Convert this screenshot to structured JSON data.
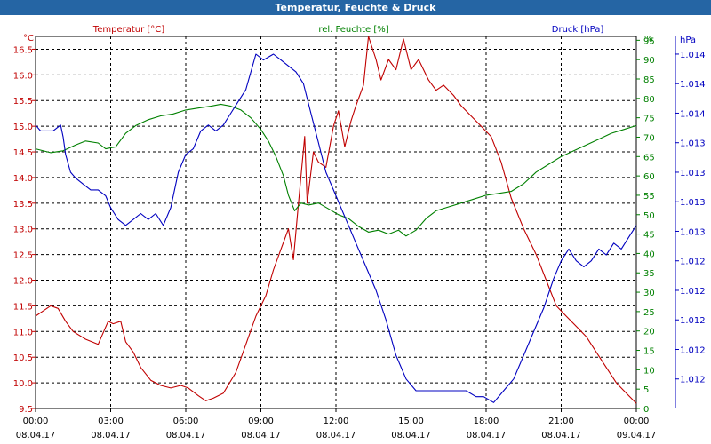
{
  "window": {
    "title": "Temperatur, Feuchte & Druck"
  },
  "colors": {
    "temperature": "#c00000",
    "humidity": "#008000",
    "pressure": "#0000c0",
    "title_bar": "#2565a4",
    "grid": "#000000"
  },
  "chart_data": {
    "type": "line",
    "title": "Temperatur, Feuchte & Druck",
    "grid": true,
    "x": {
      "unit_hours": true,
      "range": [
        0,
        24
      ],
      "ticks": [
        0,
        3,
        6,
        9,
        12,
        15,
        18,
        21,
        24
      ],
      "tick_labels": [
        "00:00",
        "03:00",
        "06:00",
        "09:00",
        "12:00",
        "15:00",
        "18:00",
        "21:00",
        "00:00"
      ],
      "date_labels": [
        "08.04.17",
        "08.04.17",
        "08.04.17",
        "08.04.17",
        "08.04.17",
        "08.04.17",
        "08.04.17",
        "08.04.17",
        "09.04.17"
      ]
    },
    "axes": {
      "temperature": {
        "label": "Temperatur [°C]",
        "unit": "°C",
        "range": [
          9.5,
          16.75
        ],
        "ticks": [
          9.5,
          10.0,
          10.5,
          11.0,
          11.5,
          12.0,
          12.5,
          13.0,
          13.5,
          14.0,
          14.5,
          15.0,
          15.5,
          16.0,
          16.5
        ],
        "tick_labels": [
          "9.5",
          "10.0",
          "10.5",
          "11.0",
          "11.5",
          "12.0",
          "12.5",
          "13.0",
          "13.5",
          "14.0",
          "14.5",
          "15.0",
          "15.5",
          "16.0",
          "16.5"
        ]
      },
      "humidity": {
        "label": "rel. Feuchte [%]",
        "unit": "%",
        "range": [
          0,
          96
        ],
        "ticks": [
          0,
          5,
          10,
          15,
          20,
          25,
          30,
          35,
          40,
          45,
          50,
          55,
          60,
          65,
          70,
          75,
          80,
          85,
          90,
          95
        ],
        "tick_labels": [
          "0",
          "5",
          "10",
          "15",
          "20",
          "25",
          "30",
          "35",
          "40",
          "45",
          "50",
          "55",
          "60",
          "65",
          "70",
          "75",
          "80",
          "85",
          "90",
          "95"
        ]
      },
      "pressure": {
        "label": "Druck [hPa]",
        "unit": "hPa",
        "range": [
          1011.6,
          1014.75
        ],
        "ticks": [
          1011.85,
          1012.1,
          1012.35,
          1012.6,
          1012.85,
          1013.1,
          1013.35,
          1013.6,
          1013.85,
          1014.1,
          1014.35,
          1014.6
        ],
        "tick_labels": [
          "1.012",
          "1.012",
          "1.012",
          "1.012",
          "1.012",
          "1.013",
          "1.013",
          "1.013",
          "1.013",
          "1.014",
          "1.014",
          "1.014"
        ]
      }
    },
    "series": [
      {
        "name": "Temperatur [°C]",
        "axis": "temperature",
        "color": "#c00000",
        "x": [
          0,
          0.3,
          0.6,
          0.9,
          1.2,
          1.5,
          2,
          2.5,
          2.9,
          3.1,
          3.4,
          3.6,
          3.9,
          4.2,
          4.6,
          5,
          5.4,
          5.8,
          6.1,
          6.5,
          6.8,
          7.1,
          7.5,
          8,
          8.4,
          8.8,
          9.2,
          9.5,
          9.8,
          10.1,
          10.3,
          10.5,
          10.75,
          10.85,
          11.1,
          11.3,
          11.6,
          11.9,
          12.1,
          12.35,
          12.6,
          12.8,
          13.1,
          13.3,
          13.6,
          13.8,
          14.1,
          14.4,
          14.7,
          15,
          15.3,
          15.7,
          16,
          16.3,
          16.7,
          17,
          17.4,
          17.8,
          18.2,
          18.6,
          19,
          19.5,
          20,
          20.4,
          20.8,
          21.2,
          21.6,
          22,
          22.4,
          22.8,
          23.2,
          23.6,
          24
        ],
        "values": [
          11.3,
          11.4,
          11.5,
          11.45,
          11.2,
          11.0,
          10.85,
          10.75,
          11.2,
          11.15,
          11.2,
          10.8,
          10.6,
          10.3,
          10.05,
          9.95,
          9.9,
          9.95,
          9.9,
          9.75,
          9.65,
          9.7,
          9.8,
          10.2,
          10.75,
          11.3,
          11.7,
          12.2,
          12.6,
          13.0,
          12.4,
          13.5,
          14.8,
          13.5,
          14.5,
          14.3,
          14.2,
          15.0,
          15.3,
          14.6,
          15.1,
          15.4,
          15.8,
          16.75,
          16.3,
          15.9,
          16.3,
          16.1,
          16.7,
          16.1,
          16.3,
          15.9,
          15.7,
          15.8,
          15.6,
          15.4,
          15.2,
          15.0,
          14.8,
          14.3,
          13.6,
          13.0,
          12.5,
          12.0,
          11.5,
          11.3,
          11.1,
          10.9,
          10.6,
          10.3,
          10.0,
          9.8,
          9.6
        ]
      },
      {
        "name": "rel. Feuchte [%]",
        "axis": "humidity",
        "color": "#008000",
        "x": [
          0,
          0.6,
          1.1,
          1.6,
          2,
          2.5,
          2.8,
          3.2,
          3.6,
          4,
          4.5,
          5,
          5.5,
          6,
          6.5,
          7,
          7.4,
          7.8,
          8.2,
          8.6,
          9,
          9.3,
          9.6,
          9.9,
          10.1,
          10.35,
          10.6,
          10.9,
          11.3,
          11.7,
          12.1,
          12.5,
          12.9,
          13.3,
          13.7,
          14.1,
          14.5,
          14.8,
          15.2,
          15.6,
          16,
          16.5,
          17,
          17.5,
          18,
          18.5,
          19,
          19.5,
          20,
          20.5,
          21,
          21.5,
          22,
          22.5,
          23,
          23.5,
          24
        ],
        "values": [
          67,
          66,
          66.5,
          68,
          69,
          68.5,
          67,
          67.5,
          71,
          73,
          74.5,
          75.5,
          76,
          77,
          77.5,
          78,
          78.5,
          78,
          77,
          75,
          72,
          69,
          65,
          60,
          55,
          51,
          53,
          52.5,
          53,
          51.5,
          50,
          49,
          47,
          45.5,
          46,
          45,
          46,
          44.5,
          46,
          49,
          51,
          52,
          53,
          54,
          55,
          55.5,
          56,
          58,
          61,
          63,
          65,
          66.5,
          68,
          69.5,
          71,
          72,
          73
        ]
      },
      {
        "name": "Druck [hPa]",
        "axis": "pressure",
        "color": "#0000c0",
        "x": [
          0,
          0.2,
          0.4,
          0.7,
          1,
          1.1,
          1.2,
          1.4,
          1.6,
          1.9,
          2.2,
          2.5,
          2.8,
          3,
          3.3,
          3.6,
          3.9,
          4.2,
          4.5,
          4.8,
          5.1,
          5.4,
          5.7,
          6,
          6.3,
          6.6,
          6.9,
          7.2,
          7.5,
          7.8,
          8.1,
          8.4,
          8.8,
          9.1,
          9.5,
          9.8,
          10.1,
          10.4,
          10.7,
          11,
          11.3,
          11.6,
          11.9,
          12.2,
          12.5,
          12.8,
          13.2,
          13.6,
          14,
          14.4,
          14.8,
          15.2,
          15.6,
          16,
          16.4,
          16.8,
          17.2,
          17.6,
          17.9,
          18.3,
          18.7,
          19.1,
          19.5,
          19.9,
          20.3,
          20.7,
          21,
          21.3,
          21.6,
          21.9,
          22.2,
          22.5,
          22.8,
          23.1,
          23.4,
          23.7,
          24
        ],
        "values": [
          1014.0,
          1013.95,
          1013.95,
          1013.95,
          1014.0,
          1013.9,
          1013.75,
          1013.6,
          1013.55,
          1013.5,
          1013.45,
          1013.45,
          1013.4,
          1013.3,
          1013.2,
          1013.15,
          1013.2,
          1013.25,
          1013.2,
          1013.25,
          1013.15,
          1013.3,
          1013.6,
          1013.75,
          1013.8,
          1013.95,
          1014.0,
          1013.95,
          1014.0,
          1014.1,
          1014.2,
          1014.3,
          1014.6,
          1014.55,
          1014.6,
          1014.55,
          1014.5,
          1014.45,
          1014.35,
          1014.1,
          1013.85,
          1013.6,
          1013.45,
          1013.3,
          1013.15,
          1013.0,
          1012.8,
          1012.6,
          1012.35,
          1012.05,
          1011.85,
          1011.75,
          1011.75,
          1011.75,
          1011.75,
          1011.75,
          1011.75,
          1011.7,
          1011.7,
          1011.65,
          1011.75,
          1011.85,
          1012.05,
          1012.25,
          1012.45,
          1012.7,
          1012.85,
          1012.95,
          1012.85,
          1012.8,
          1012.85,
          1012.95,
          1012.9,
          1013.0,
          1012.95,
          1013.05,
          1013.15
        ]
      }
    ]
  }
}
